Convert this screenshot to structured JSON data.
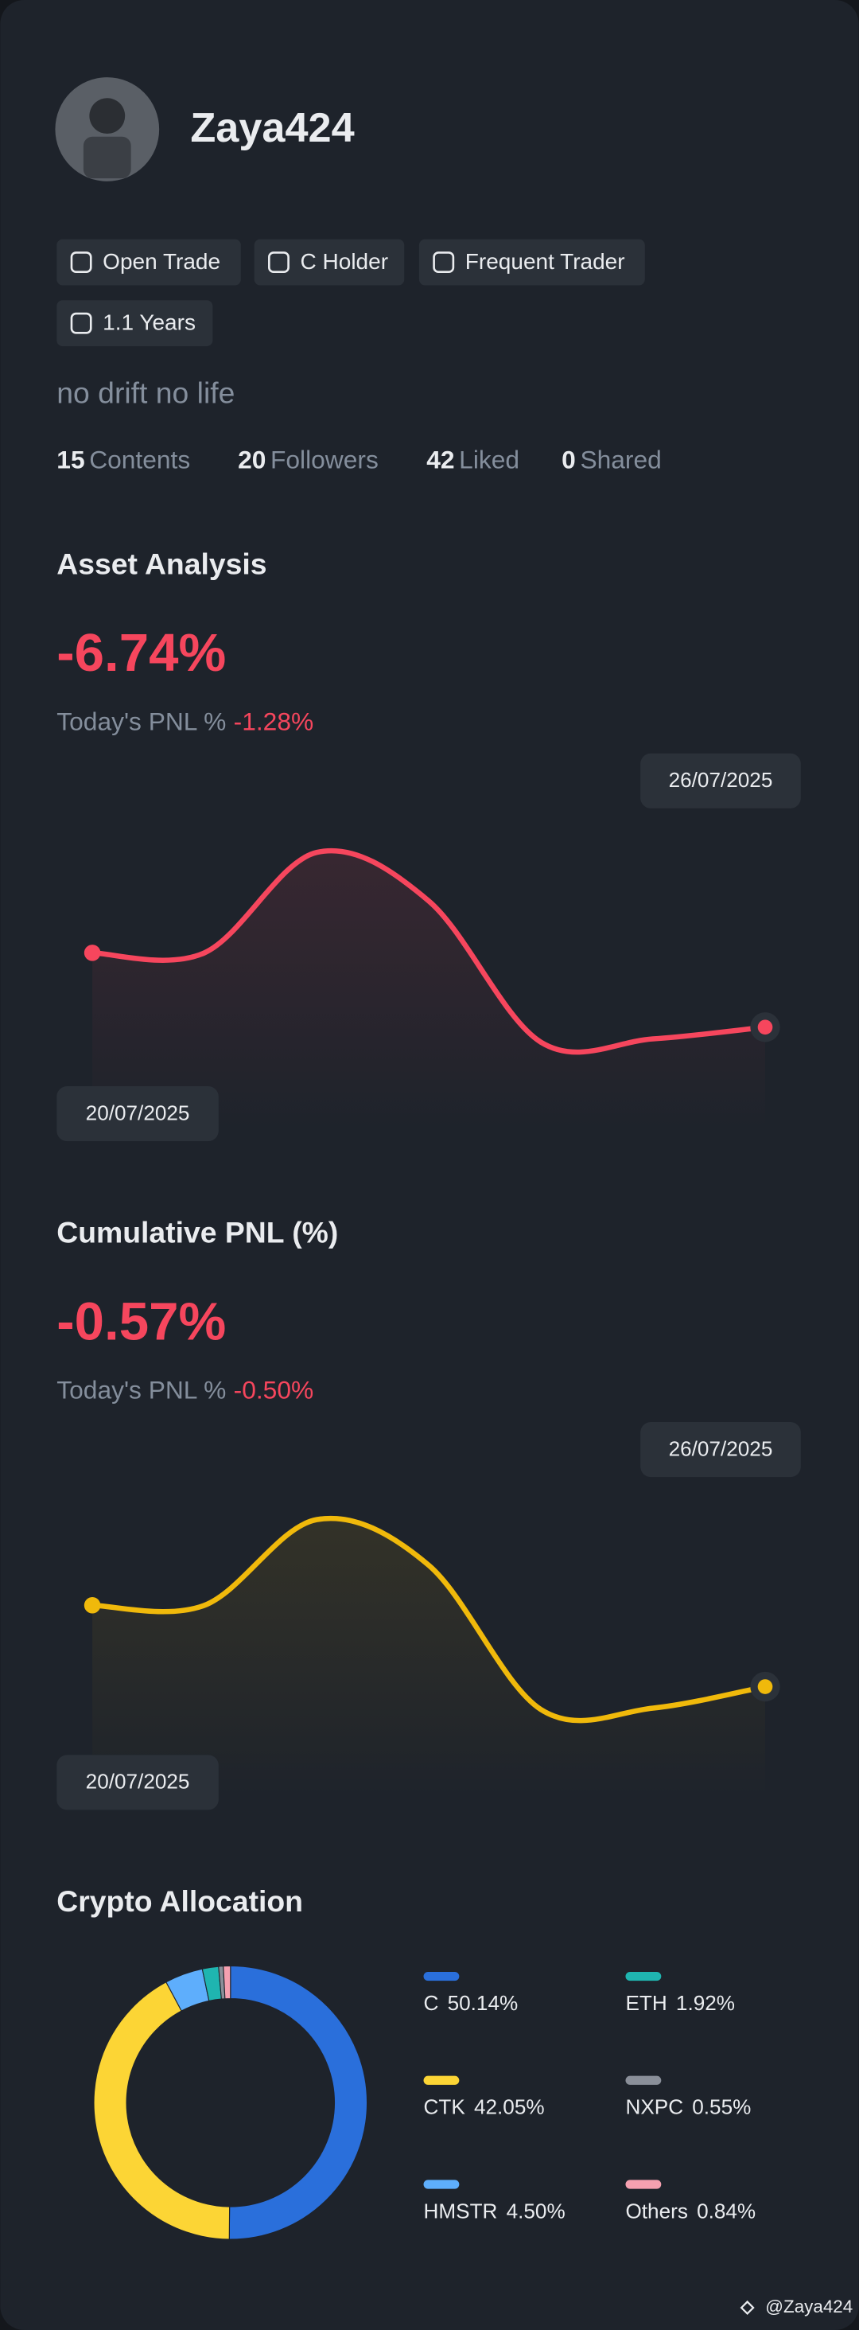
{
  "profile": {
    "name": "Zaya424",
    "tags": [
      "Open Trade",
      "C Holder",
      "Frequent Trader",
      "1.1 Years"
    ],
    "bio": "no drift no life",
    "stats": [
      {
        "count": 15,
        "label": "Contents"
      },
      {
        "count": 20,
        "label": "Followers"
      },
      {
        "count": 42,
        "label": "Liked"
      },
      {
        "count": 0,
        "label": "Shared"
      }
    ]
  },
  "chart_data": [
    {
      "type": "line",
      "title": "Asset Analysis",
      "headline": "-6.74%",
      "subtitle": "Today's PNL %",
      "subtitle_value": "-1.28%",
      "x": [
        "20/07/2025",
        null,
        null,
        null,
        null,
        null,
        "26/07/2025"
      ],
      "series": [
        {
          "color": "#f6465d",
          "values": [
            0,
            0,
            9.1,
            4.7,
            -8.1,
            -7.8,
            -6.74
          ]
        }
      ],
      "ylim": [
        -16,
        17
      ]
    },
    {
      "type": "line",
      "title": "Cumulative PNL (%)",
      "headline": "-0.57%",
      "subtitle": "Today's PNL %",
      "subtitle_value": "-0.50%",
      "x": [
        "20/07/2025",
        null,
        null,
        null,
        null,
        null,
        "26/07/2025"
      ],
      "series": [
        {
          "color": "#f0b90b",
          "values": [
            0,
            0,
            0.6,
            0.28,
            -0.73,
            -0.72,
            -0.57
          ]
        }
      ],
      "ylim": [
        -1.35,
        1.2
      ]
    },
    {
      "type": "donut",
      "title": "Crypto Allocation",
      "categories": [
        "C",
        "CTK",
        "HMSTR",
        "ETH",
        "NXPC",
        "Others"
      ],
      "values": [
        50.14,
        42.05,
        4.5,
        1.92,
        0.55,
        0.84
      ],
      "value_labels": [
        "50.14%",
        "42.05%",
        "4.50%",
        "1.92%",
        "0.55%",
        "0.84%"
      ],
      "colors": [
        "#2a6fdb",
        "#fcd535",
        "#5eaefc",
        "#1fb5b0",
        "#8a8f99",
        "#f5a0b0"
      ]
    }
  ],
  "watermark": "@Zaya424"
}
